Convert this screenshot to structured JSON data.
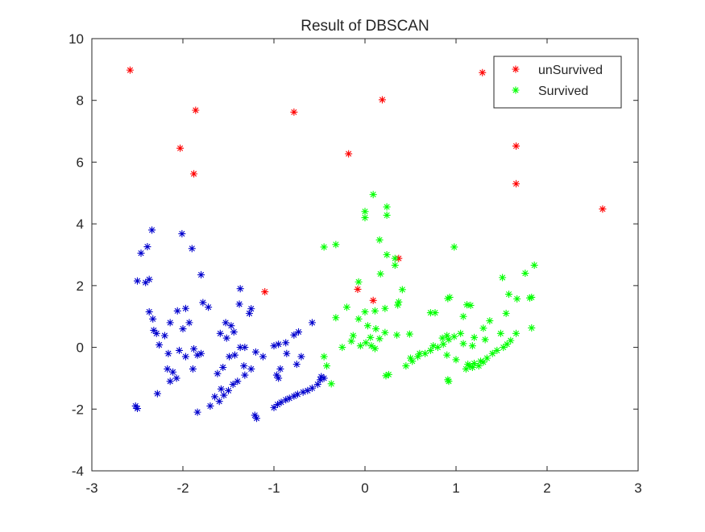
{
  "chart_data": {
    "type": "scatter",
    "title": "Result of DBSCAN",
    "xlabel": "",
    "ylabel": "",
    "xlim": [
      -3,
      3
    ],
    "ylim": [
      -4,
      10
    ],
    "xticks": [
      "-3",
      "-2",
      "-1",
      "0",
      "1",
      "2",
      "3"
    ],
    "yticks": [
      "-4",
      "-2",
      "0",
      "2",
      "4",
      "6",
      "8",
      "10"
    ],
    "grid": false,
    "legend_position": "top-right",
    "marker": "asterisk",
    "series": [
      {
        "name": "unSurvived",
        "color": "#ff0000",
        "points": [
          [
            -2.58,
            8.98
          ],
          [
            -1.86,
            7.68
          ],
          [
            -2.03,
            6.45
          ],
          [
            -1.88,
            5.62
          ],
          [
            -0.78,
            7.62
          ],
          [
            -0.18,
            6.27
          ],
          [
            0.19,
            8.02
          ],
          [
            1.29,
            8.9
          ],
          [
            1.66,
            6.52
          ],
          [
            1.66,
            5.3
          ],
          [
            2.61,
            4.48
          ],
          [
            -1.1,
            1.8
          ],
          [
            -0.08,
            1.88
          ],
          [
            0.09,
            1.52
          ],
          [
            0.37,
            2.88
          ]
        ]
      },
      {
        "name": "Survived",
        "color": "#00ff00",
        "points": [
          [
            -0.45,
            3.25
          ],
          [
            -0.32,
            3.33
          ],
          [
            -0.07,
            2.12
          ],
          [
            0.0,
            4.4
          ],
          [
            0.0,
            4.2
          ],
          [
            0.09,
            4.95
          ],
          [
            0.16,
            3.48
          ],
          [
            0.24,
            4.55
          ],
          [
            0.24,
            4.28
          ],
          [
            0.24,
            3.0
          ],
          [
            0.33,
            2.88
          ],
          [
            0.33,
            2.66
          ],
          [
            0.17,
            2.38
          ],
          [
            0.41,
            1.87
          ],
          [
            0.37,
            1.47
          ],
          [
            0.36,
            1.37
          ],
          [
            0.22,
            1.26
          ],
          [
            0.11,
            1.18
          ],
          [
            0.0,
            1.15
          ],
          [
            -0.07,
            0.92
          ],
          [
            -0.2,
            1.3
          ],
          [
            -0.32,
            0.96
          ],
          [
            0.03,
            0.7
          ],
          [
            0.12,
            0.6
          ],
          [
            0.22,
            0.48
          ],
          [
            0.06,
            0.32
          ],
          [
            -0.13,
            0.38
          ],
          [
            0.07,
            0.05
          ],
          [
            -0.05,
            0.05
          ],
          [
            -0.15,
            0.2
          ],
          [
            -0.25,
            0.0
          ],
          [
            0.16,
            0.28
          ],
          [
            0.35,
            0.4
          ],
          [
            0.49,
            0.43
          ],
          [
            0.26,
            -0.88
          ],
          [
            0.23,
            -0.92
          ],
          [
            -0.45,
            -0.3
          ],
          [
            -0.42,
            -0.6
          ],
          [
            -0.37,
            -1.18
          ],
          [
            0.01,
            0.15
          ],
          [
            0.11,
            -0.04
          ],
          [
            0.98,
            3.25
          ],
          [
            0.72,
            1.12
          ],
          [
            0.77,
            1.12
          ],
          [
            0.91,
            1.58
          ],
          [
            0.93,
            1.62
          ],
          [
            1.08,
            1.0
          ],
          [
            1.12,
            1.38
          ],
          [
            1.16,
            1.36
          ],
          [
            1.3,
            0.62
          ],
          [
            1.37,
            0.86
          ],
          [
            1.49,
            0.45
          ],
          [
            1.51,
            2.26
          ],
          [
            1.55,
            1.1
          ],
          [
            1.6,
            0.22
          ],
          [
            1.66,
            0.45
          ],
          [
            1.76,
            2.4
          ],
          [
            1.81,
            1.6
          ],
          [
            1.83,
            1.62
          ],
          [
            1.86,
            2.66
          ],
          [
            1.83,
            0.63
          ],
          [
            1.58,
            1.72
          ],
          [
            1.67,
            1.57
          ],
          [
            0.45,
            -0.6
          ],
          [
            0.52,
            -0.45
          ],
          [
            0.58,
            -0.3
          ],
          [
            0.66,
            -0.2
          ],
          [
            0.72,
            -0.1
          ],
          [
            0.8,
            0.0
          ],
          [
            0.86,
            0.1
          ],
          [
            0.92,
            0.25
          ],
          [
            0.98,
            0.35
          ],
          [
            1.05,
            0.45
          ],
          [
            0.9,
            0.38
          ],
          [
            0.85,
            0.3
          ],
          [
            0.75,
            0.05
          ],
          [
            0.6,
            -0.2
          ],
          [
            0.5,
            -0.35
          ],
          [
            1.11,
            -0.7
          ],
          [
            1.15,
            -0.6
          ],
          [
            1.2,
            -0.52
          ],
          [
            1.27,
            -0.45
          ],
          [
            1.34,
            -0.35
          ],
          [
            1.4,
            -0.2
          ],
          [
            1.45,
            -0.1
          ],
          [
            1.52,
            0.0
          ],
          [
            1.56,
            0.1
          ],
          [
            1.25,
            -0.6
          ],
          [
            1.3,
            -0.48
          ],
          [
            1.18,
            -0.65
          ],
          [
            1.13,
            -0.55
          ],
          [
            0.91,
            -1.05
          ],
          [
            0.92,
            -1.1
          ],
          [
            1.0,
            -0.4
          ],
          [
            0.9,
            -0.25
          ],
          [
            1.08,
            0.12
          ],
          [
            1.18,
            0.05
          ],
          [
            1.32,
            0.25
          ],
          [
            1.2,
            0.32
          ]
        ]
      },
      {
        "name": "",
        "color": "#0000cd",
        "points": [
          [
            -2.34,
            3.8
          ],
          [
            -2.46,
            3.05
          ],
          [
            -2.39,
            3.26
          ],
          [
            -2.01,
            3.68
          ],
          [
            -1.9,
            3.2
          ],
          [
            -2.5,
            2.15
          ],
          [
            -2.41,
            2.1
          ],
          [
            -2.37,
            2.2
          ],
          [
            -1.8,
            2.35
          ],
          [
            -2.37,
            1.15
          ],
          [
            -2.33,
            0.92
          ],
          [
            -2.06,
            1.18
          ],
          [
            -1.97,
            1.26
          ],
          [
            -2.32,
            0.55
          ],
          [
            -2.29,
            0.45
          ],
          [
            -2.14,
            0.8
          ],
          [
            -2.2,
            0.38
          ],
          [
            -2.0,
            0.6
          ],
          [
            -2.26,
            0.08
          ],
          [
            -2.16,
            -0.2
          ],
          [
            -2.04,
            -0.1
          ],
          [
            -1.97,
            -0.3
          ],
          [
            -1.88,
            -0.05
          ],
          [
            -2.17,
            -0.7
          ],
          [
            -2.11,
            -0.8
          ],
          [
            -2.14,
            -1.1
          ],
          [
            -2.07,
            -1.0
          ],
          [
            -1.89,
            -0.7
          ],
          [
            -1.84,
            -0.25
          ],
          [
            -1.8,
            -0.2
          ],
          [
            -1.84,
            -2.1
          ],
          [
            -2.52,
            -1.9
          ],
          [
            -2.5,
            -1.98
          ],
          [
            -2.28,
            -1.5
          ],
          [
            -1.93,
            0.8
          ],
          [
            -1.78,
            1.45
          ],
          [
            -1.72,
            1.3
          ],
          [
            -1.59,
            0.45
          ],
          [
            -1.53,
            0.8
          ],
          [
            -1.47,
            0.7
          ],
          [
            -1.52,
            0.3
          ],
          [
            -1.44,
            0.5
          ],
          [
            -1.38,
            1.4
          ],
          [
            -1.37,
            1.9
          ],
          [
            -1.27,
            1.1
          ],
          [
            -1.25,
            1.25
          ],
          [
            -1.56,
            -0.65
          ],
          [
            -1.49,
            -0.3
          ],
          [
            -1.43,
            -0.25
          ],
          [
            -1.37,
            0.0
          ],
          [
            -1.32,
            0.0
          ],
          [
            -1.2,
            -0.15
          ],
          [
            -1.12,
            -0.3
          ],
          [
            -1.0,
            0.05
          ],
          [
            -0.95,
            0.1
          ],
          [
            -0.87,
            0.15
          ],
          [
            -0.78,
            0.4
          ],
          [
            -0.73,
            0.5
          ],
          [
            -0.58,
            0.8
          ],
          [
            -0.86,
            -0.2
          ],
          [
            -0.93,
            -0.7
          ],
          [
            -0.97,
            -0.9
          ],
          [
            -0.95,
            -1.0
          ],
          [
            -0.75,
            -0.55
          ],
          [
            -0.7,
            -0.3
          ],
          [
            -0.48,
            -0.95
          ],
          [
            -0.45,
            -1.0
          ],
          [
            -0.49,
            -1.05
          ],
          [
            -1.21,
            -2.2
          ],
          [
            -1.19,
            -2.3
          ],
          [
            -1.0,
            -1.95
          ],
          [
            -0.96,
            -1.85
          ],
          [
            -0.92,
            -1.78
          ],
          [
            -0.87,
            -1.7
          ],
          [
            -0.83,
            -1.65
          ],
          [
            -0.78,
            -1.58
          ],
          [
            -0.74,
            -1.52
          ],
          [
            -0.68,
            -1.45
          ],
          [
            -0.63,
            -1.4
          ],
          [
            -0.58,
            -1.32
          ],
          [
            -0.52,
            -1.2
          ],
          [
            -1.55,
            -1.55
          ],
          [
            -1.6,
            -1.75
          ],
          [
            -1.65,
            -1.6
          ],
          [
            -1.7,
            -1.9
          ],
          [
            -1.58,
            -1.35
          ],
          [
            -1.5,
            -1.4
          ],
          [
            -1.45,
            -1.2
          ],
          [
            -1.4,
            -1.1
          ],
          [
            -1.32,
            -0.9
          ],
          [
            -1.25,
            -0.7
          ],
          [
            -1.62,
            -0.85
          ],
          [
            -1.33,
            -0.6
          ]
        ]
      }
    ]
  }
}
